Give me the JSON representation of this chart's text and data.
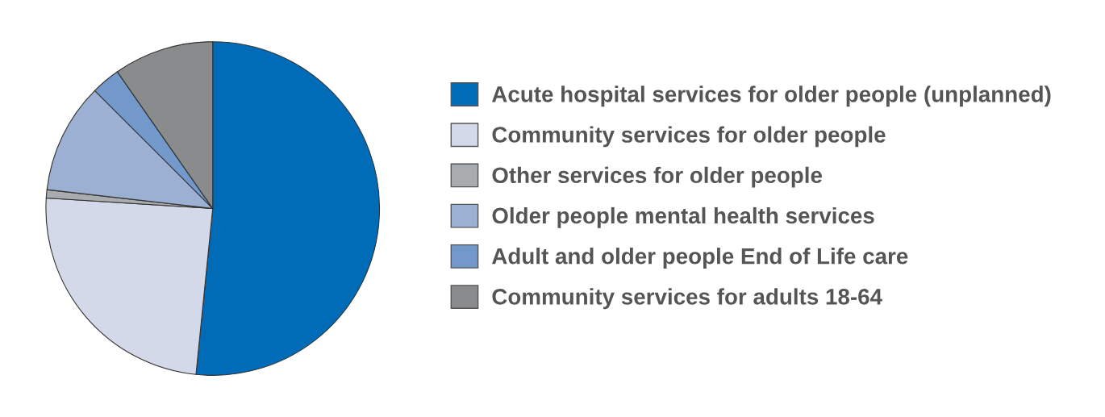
{
  "chart_data": {
    "type": "pie",
    "categories": [
      "Acute hospital services for older people (unplanned)",
      "Community services for older people",
      "Other services for older people",
      "Older people mental health services",
      "Adult and older people End of Life care",
      "Community services for adults 18-64"
    ],
    "values": [
      51.6,
      24.4,
      0.8,
      10.7,
      2.8,
      9.7
    ],
    "colors": [
      "#006bb6",
      "#d3d9e8",
      "#a9acaf",
      "#9bb0d3",
      "#7399cb",
      "#8a8b8d"
    ],
    "legend": "right"
  }
}
